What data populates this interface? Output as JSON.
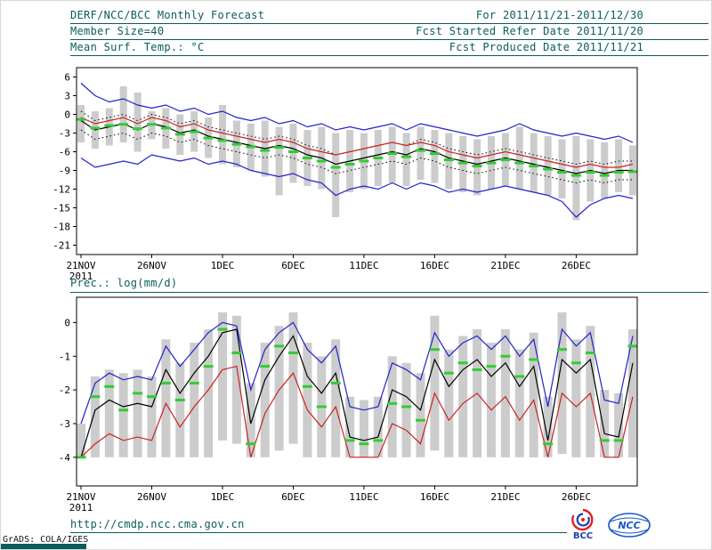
{
  "header": {
    "title": "DERF/NCC/BCC Monthly Forecast",
    "for_range": "For 2011/11/21-2011/12/30",
    "member_size": "Member Size=40",
    "refer_date": "Fcst Started Refer Date 2011/11/20",
    "var_label": "Mean Surf. Temp.: °C",
    "produced_date": "Fcst Produced Date 2011/11/21"
  },
  "precip_label": "Prec.: log(mm/d)",
  "footer": {
    "url": "http://cmdp.ncc.cma.gov.cn",
    "credit": "GrADS: COLA/IGES",
    "bcc_logo_text": "BCC",
    "ncc_logo_text": "NCC"
  },
  "colors": {
    "header_text": "#0a5c5c",
    "blue_line": "#2222cc",
    "red_line": "#cc2222",
    "black_line": "#000000",
    "green_marker": "#33cc33",
    "spread_bar": "#cccccc"
  },
  "chart_data": [
    {
      "type": "line",
      "title": "Mean Surf. Temp.: °C",
      "n_points": 40,
      "x_tick_indices": [
        0,
        5,
        10,
        15,
        20,
        25,
        30,
        35
      ],
      "x_tick_labels": [
        "21NOV",
        "26NOV",
        "1DEC",
        "6DEC",
        "11DEC",
        "16DEC",
        "21DEC",
        "26DEC"
      ],
      "x_sub_label": "2011",
      "ylim": [
        -22.5,
        7.5
      ],
      "yticks": [
        6,
        3,
        0,
        -3,
        -6,
        -9,
        -12,
        -15,
        -18,
        -21
      ],
      "bars": {
        "name": "ensemble spread",
        "color": "#cccccc",
        "high": [
          1.5,
          0.5,
          1,
          4.5,
          3.5,
          0.5,
          1,
          0,
          0.5,
          -0.5,
          1.5,
          -1,
          -1.5,
          -1,
          -2,
          -1.5,
          -2.5,
          -2,
          -3,
          -2.5,
          -3,
          -2.5,
          -2,
          -3,
          -2,
          -2.5,
          -3,
          -3.5,
          -4,
          -3.5,
          -3,
          -2,
          -3,
          -3.5,
          -4,
          -3.5,
          -4,
          -4.5,
          -4,
          -5
        ],
        "low": [
          -4.5,
          -5.5,
          -5,
          -4.5,
          -6,
          -4,
          -5.5,
          -6.5,
          -6,
          -7,
          -8,
          -8.5,
          -9,
          -10,
          -13,
          -11,
          -11.5,
          -12,
          -16.5,
          -12.5,
          -12,
          -11.5,
          -11,
          -11.5,
          -10.5,
          -11,
          -12,
          -12.5,
          -13,
          -12,
          -11.5,
          -12,
          -12.5,
          -13,
          -13.5,
          -17,
          -14,
          -13.5,
          -12.5,
          -13
        ]
      },
      "series": [
        {
          "name": "ensemble max (blue)",
          "color": "#2222cc",
          "style": "solid",
          "values": [
            5,
            3,
            2,
            2.5,
            1.5,
            1,
            1.5,
            0.5,
            1,
            0,
            0.5,
            -0.5,
            -1,
            -0.5,
            -1.5,
            -1,
            -2,
            -1.5,
            -2.5,
            -2,
            -2.5,
            -2,
            -1.5,
            -2.5,
            -1.5,
            -2,
            -2.5,
            -3,
            -3.5,
            -3,
            -2.5,
            -1.5,
            -2.5,
            -3,
            -3.5,
            -3,
            -3.5,
            -4,
            -3.5,
            -4.5
          ]
        },
        {
          "name": "ensemble min (blue)",
          "color": "#2222cc",
          "style": "solid",
          "values": [
            -7,
            -8.5,
            -8,
            -7.5,
            -8,
            -6.5,
            -7,
            -7.5,
            -7,
            -8,
            -7.5,
            -8,
            -9,
            -9.5,
            -10,
            -9.5,
            -10.5,
            -11,
            -13,
            -12,
            -11.5,
            -12,
            -11,
            -12,
            -11,
            -11.5,
            -12.5,
            -12,
            -12.5,
            -12,
            -11.5,
            -12,
            -12.5,
            -13,
            -14,
            -16.5,
            -14.5,
            -13.5,
            -13,
            -13.5
          ]
        },
        {
          "name": "upper quartile (dotted)",
          "color": "#000000",
          "style": "dotted",
          "values": [
            0.5,
            -1,
            -0.5,
            0,
            -1,
            0,
            -0.5,
            -1.5,
            -1,
            -2,
            -2.5,
            -3,
            -3.5,
            -4,
            -3.5,
            -4,
            -5,
            -5.5,
            -6.5,
            -6,
            -5.5,
            -5,
            -4.5,
            -5,
            -4,
            -4.5,
            -5.5,
            -6,
            -6.5,
            -6,
            -5.5,
            -6,
            -6.5,
            -7,
            -7.5,
            -8,
            -7.5,
            -8,
            -7.5,
            -7.5
          ]
        },
        {
          "name": "lower quartile (dotted)",
          "color": "#000000",
          "style": "dotted",
          "values": [
            -2.5,
            -4,
            -3.5,
            -3,
            -4,
            -3,
            -3.5,
            -4.5,
            -4,
            -5,
            -5.5,
            -6,
            -6.5,
            -7,
            -6.5,
            -7,
            -8,
            -8.5,
            -9.5,
            -9,
            -8.5,
            -8,
            -7.5,
            -8,
            -7,
            -7.5,
            -8.5,
            -9,
            -9.5,
            -9,
            -8.5,
            -9,
            -9.5,
            -10,
            -10.5,
            -11,
            -10.5,
            -11,
            -10.5,
            -10.5
          ]
        },
        {
          "name": "ensemble mean (black)",
          "color": "#000000",
          "style": "solid",
          "values": [
            -1,
            -2.5,
            -2,
            -1.5,
            -2.5,
            -1.5,
            -2,
            -3,
            -2.5,
            -3.5,
            -4,
            -4.5,
            -5,
            -5.5,
            -5,
            -5.5,
            -6.5,
            -7,
            -8,
            -7.5,
            -7,
            -6.5,
            -6,
            -6.5,
            -5.5,
            -6,
            -7,
            -7.5,
            -8,
            -7.5,
            -7,
            -7.5,
            -8,
            -8.5,
            -9,
            -9.5,
            -9,
            -9.5,
            -9,
            -9
          ]
        },
        {
          "name": "red line",
          "color": "#cc2222",
          "style": "solid",
          "values": [
            -0.5,
            -1.5,
            -1,
            -0.5,
            -1.5,
            -0.5,
            -1,
            -2,
            -1.5,
            -2.5,
            -3,
            -3.5,
            -4,
            -4.5,
            -4,
            -4.5,
            -5.5,
            -6,
            -6.5,
            -6,
            -5.5,
            -5,
            -4.5,
            -5,
            -4.5,
            -5,
            -6,
            -6.5,
            -7,
            -6.5,
            -6,
            -6.5,
            -7,
            -7.5,
            -8,
            -8.5,
            -8,
            -8.5,
            -8.5,
            -8
          ]
        },
        {
          "name": "median (green dashes)",
          "color": "#33cc33",
          "style": "dash-markers",
          "values": [
            -0.8,
            -2.2,
            -1.8,
            -1.6,
            -2.3,
            -1.6,
            -2.2,
            -3.2,
            -2.8,
            -3.8,
            -4.2,
            -4.8,
            -5.2,
            -5.8,
            -5.3,
            -6,
            -7,
            -7.5,
            -8.5,
            -8,
            -7.5,
            -7,
            -6.3,
            -6.8,
            -5.8,
            -6.3,
            -7.3,
            -7.8,
            -8.3,
            -7.8,
            -7.3,
            -7.8,
            -8.3,
            -8.8,
            -9.3,
            -9.8,
            -9.3,
            -9.8,
            -9.3,
            -9.2
          ]
        }
      ]
    },
    {
      "type": "line",
      "title": "Prec.: log(mm/d)",
      "n_points": 40,
      "x_tick_indices": [
        0,
        5,
        10,
        15,
        20,
        25,
        30,
        35
      ],
      "x_tick_labels": [
        "21NOV",
        "26NOV",
        "1DEC",
        "6DEC",
        "11DEC",
        "16DEC",
        "21DEC",
        "26DEC"
      ],
      "x_sub_label": "2011",
      "ylim": [
        -4.85,
        0.75
      ],
      "yticks": [
        0,
        -1,
        -2,
        -3,
        -4
      ],
      "bars": {
        "name": "ensemble spread",
        "color": "#cccccc",
        "high": [
          -3,
          -1.6,
          -1.4,
          -1.5,
          -1.4,
          -1.6,
          -0.5,
          -1.2,
          -0.6,
          -0.2,
          0.3,
          0.2,
          -1.8,
          -0.6,
          -0.1,
          0.3,
          -0.6,
          -1,
          -0.5,
          -2.2,
          -2.3,
          -2.2,
          -1,
          -1.2,
          -1.5,
          0.2,
          -0.8,
          -0.4,
          -0.2,
          -0.6,
          -0.2,
          -0.8,
          -0.3,
          -2.2,
          0.3,
          -0.5,
          -0.1,
          -2,
          -2.1,
          -0.2
        ],
        "low": [
          -4,
          -4,
          -4,
          -4,
          -4,
          -4,
          -4,
          -4,
          -4,
          -4,
          -3.5,
          -3.6,
          -4,
          -4,
          -3.8,
          -3.6,
          -4,
          -4,
          -4,
          -4,
          -4,
          -4,
          -4,
          -4,
          -4,
          -3.8,
          -4,
          -4,
          -4,
          -4,
          -4,
          -4,
          -4,
          -4,
          -3.9,
          -4,
          -4,
          -4,
          -4,
          -4
        ]
      },
      "series": [
        {
          "name": "ensemble max (blue)",
          "color": "#2222cc",
          "style": "solid",
          "values": [
            -3,
            -1.8,
            -1.5,
            -1.7,
            -1.6,
            -1.7,
            -0.7,
            -1.3,
            -0.8,
            -0.3,
            0,
            -0.1,
            -2,
            -0.8,
            -0.3,
            0,
            -0.8,
            -1.2,
            -0.7,
            -2.5,
            -2.6,
            -2.5,
            -1.2,
            -1.4,
            -1.7,
            -0.3,
            -1,
            -0.6,
            -0.4,
            -0.8,
            -0.4,
            -1,
            -0.5,
            -2.5,
            -0.2,
            -0.7,
            -0.3,
            -2.3,
            -2.4,
            -0.4
          ]
        },
        {
          "name": "ensemble mean (black)",
          "color": "#000000",
          "style": "solid",
          "values": [
            -4,
            -2.6,
            -2.3,
            -2.5,
            -2.4,
            -2.5,
            -1.4,
            -2.1,
            -1.5,
            -1,
            -0.3,
            -0.2,
            -3,
            -1.7,
            -1,
            -0.4,
            -1.6,
            -2.1,
            -1.5,
            -3.4,
            -3.5,
            -3.4,
            -2,
            -2.2,
            -2.6,
            -1.1,
            -1.9,
            -1.4,
            -1.1,
            -1.6,
            -1.2,
            -1.9,
            -1.3,
            -3.5,
            -1.1,
            -1.5,
            -1.1,
            -3.3,
            -3.4,
            -1.2
          ]
        },
        {
          "name": "red line",
          "color": "#cc2222",
          "style": "solid",
          "values": [
            -4,
            -3.6,
            -3.3,
            -3.5,
            -3.4,
            -3.5,
            -2.4,
            -3.1,
            -2.5,
            -2,
            -1.4,
            -1.3,
            -4,
            -2.7,
            -2,
            -1.5,
            -2.6,
            -3.1,
            -2.5,
            -4,
            -4,
            -4,
            -3,
            -3.2,
            -3.6,
            -2.1,
            -2.9,
            -2.4,
            -2.1,
            -2.6,
            -2.2,
            -2.9,
            -2.3,
            -4,
            -2.1,
            -2.5,
            -2.1,
            -4,
            -4,
            -2.2
          ]
        },
        {
          "name": "median (green dashes)",
          "color": "#33cc33",
          "style": "dash-markers",
          "values": [
            -4,
            -2.2,
            -1.9,
            -2.6,
            -2.1,
            -2.2,
            -1.8,
            -2.3,
            -1.8,
            -1.3,
            -0.2,
            -0.9,
            -3.6,
            -1.3,
            -0.7,
            -0.9,
            -1.9,
            -2.5,
            -1.8,
            -3.5,
            -3.6,
            -3.5,
            -2.4,
            -2.5,
            -2.9,
            -0.8,
            -1.5,
            -1.2,
            -1.4,
            -1.3,
            -1,
            -1.6,
            -1.1,
            -3.6,
            -0.8,
            -1.2,
            -0.9,
            -3.5,
            -3.5,
            -0.7
          ]
        }
      ]
    }
  ]
}
